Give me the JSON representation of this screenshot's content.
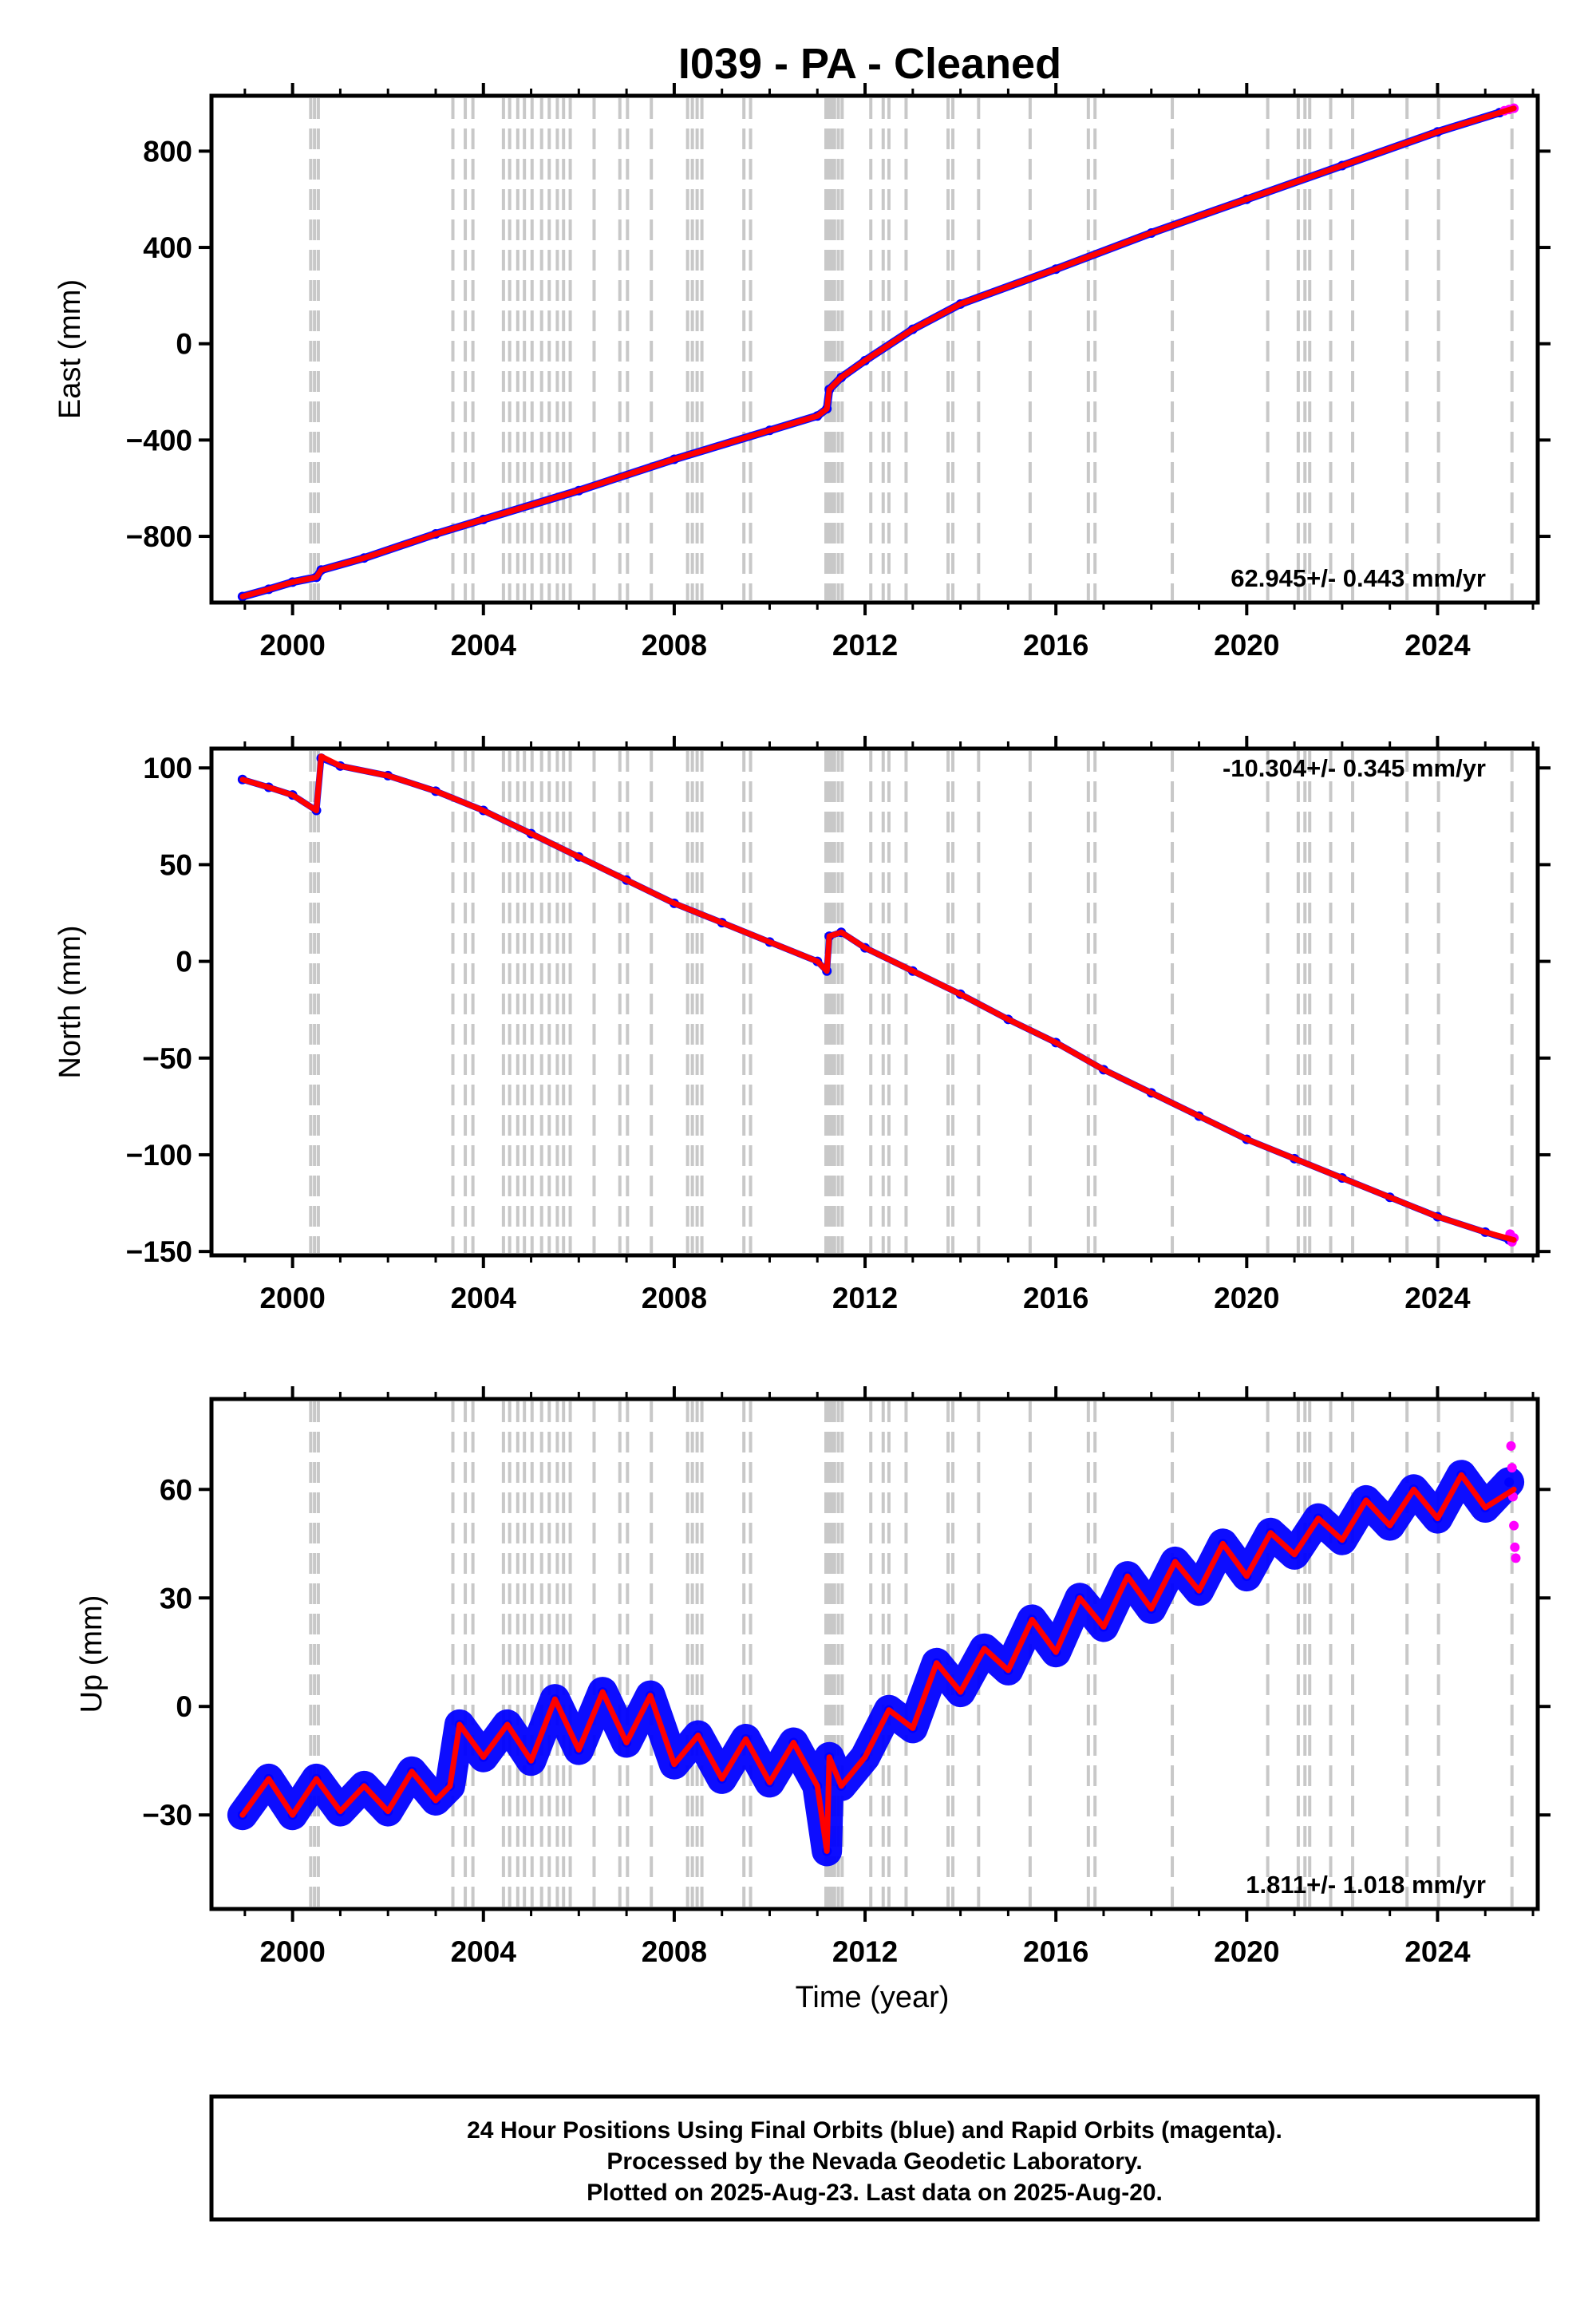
{
  "title": "I039  - PA - Cleaned",
  "colors": {
    "final_orbits": "#0000ff",
    "rapid_orbits": "#ff00ff",
    "model": "#ff0000",
    "event_lines": "#c8c8c8",
    "frame": "#000000"
  },
  "event_times": [
    2000.38,
    2000.46,
    2000.54,
    2003.36,
    2003.62,
    2003.78,
    2004.42,
    2004.55,
    2004.72,
    2004.86,
    2005.02,
    2005.22,
    2005.38,
    2005.55,
    2005.68,
    2005.82,
    2006.32,
    2006.86,
    2007.02,
    2007.52,
    2008.28,
    2008.38,
    2008.48,
    2008.58,
    2009.46,
    2009.6,
    2011.18,
    2011.24,
    2011.3,
    2011.36,
    2011.44,
    2011.52,
    2012.12,
    2012.38,
    2012.5,
    2012.86,
    2013.74,
    2013.84,
    2014.38,
    2015.46,
    2016.68,
    2016.82,
    2018.44,
    2020.44,
    2021.08,
    2021.22,
    2021.32,
    2021.76,
    2022.22,
    2023.36,
    2024.02,
    2025.56
  ],
  "chart_data": [
    {
      "type": "scatter",
      "component": "east",
      "ylabel": "East (mm)",
      "xlim": [
        1998.3,
        2026.1
      ],
      "ylim": [
        -1075,
        1030
      ],
      "x_ticks": [
        2000,
        2004,
        2008,
        2012,
        2016,
        2020,
        2024
      ],
      "y_ticks": [
        -800,
        -400,
        0,
        400,
        800
      ],
      "y_tick_labels": [
        "−800",
        "−400",
        "0",
        "400",
        "800"
      ],
      "rate_text": "62.945+/- 0.443 mm/yr",
      "rate_position": "bottom-right",
      "series": [
        {
          "name": "Final Orbits",
          "color": "#0000ff",
          "x": [
            1998.95,
            1999.5,
            2000.0,
            2000.5,
            2000.6,
            2001.5,
            2003.0,
            2004.0,
            2006.0,
            2008.0,
            2010.0,
            2011.0,
            2011.2,
            2011.25,
            2011.5,
            2012.0,
            2013.0,
            2014.0,
            2016.0,
            2018.0,
            2020.0,
            2022.0,
            2024.0,
            2025.3
          ],
          "y": [
            -1050,
            -1020,
            -990,
            -970,
            -940,
            -890,
            -790,
            -730,
            -610,
            -480,
            -360,
            -300,
            -270,
            -190,
            -140,
            -70,
            60,
            165,
            310,
            460,
            600,
            740,
            880,
            960
          ]
        },
        {
          "name": "Rapid Orbits",
          "color": "#ff00ff",
          "x": [
            2025.4,
            2025.5,
            2025.6
          ],
          "y": [
            968,
            973,
            978
          ]
        },
        {
          "name": "Model",
          "color": "#ff0000",
          "x": [
            1998.95,
            1999.5,
            2000.0,
            2000.5,
            2000.6,
            2001.5,
            2003.0,
            2004.0,
            2006.0,
            2008.0,
            2010.0,
            2011.0,
            2011.2,
            2011.25,
            2011.5,
            2012.0,
            2013.0,
            2014.0,
            2016.0,
            2018.0,
            2020.0,
            2022.0,
            2024.0,
            2025.6
          ],
          "y": [
            -1050,
            -1020,
            -990,
            -970,
            -940,
            -890,
            -790,
            -730,
            -610,
            -480,
            -360,
            -300,
            -270,
            -190,
            -140,
            -70,
            60,
            165,
            310,
            460,
            600,
            740,
            880,
            978
          ]
        }
      ]
    },
    {
      "type": "scatter",
      "component": "north",
      "ylabel": "North (mm)",
      "xlim": [
        1998.3,
        2026.1
      ],
      "ylim": [
        -152,
        110
      ],
      "x_ticks": [
        2000,
        2004,
        2008,
        2012,
        2016,
        2020,
        2024
      ],
      "y_ticks": [
        -150,
        -100,
        -50,
        0,
        50,
        100
      ],
      "y_tick_labels": [
        "−150",
        "−100",
        "−50",
        "0",
        "50",
        "100"
      ],
      "rate_text": "-10.304+/- 0.345 mm/yr",
      "rate_position": "top-right",
      "series": [
        {
          "name": "Final Orbits",
          "color": "#0000ff",
          "x": [
            1998.95,
            1999.5,
            2000.0,
            2000.5,
            2000.6,
            2001.0,
            2002.0,
            2003.0,
            2004.0,
            2005.0,
            2006.0,
            2007.0,
            2008.0,
            2009.0,
            2010.0,
            2011.0,
            2011.2,
            2011.25,
            2011.5,
            2012.0,
            2013.0,
            2014.0,
            2015.0,
            2016.0,
            2017.0,
            2018.0,
            2019.0,
            2020.0,
            2021.0,
            2022.0,
            2023.0,
            2024.0,
            2025.0,
            2025.5
          ],
          "y": [
            94,
            90,
            86,
            78,
            105,
            101,
            96,
            88,
            78,
            66,
            54,
            42,
            30,
            20,
            10,
            0,
            -5,
            13,
            15,
            7,
            -5,
            -17,
            -30,
            -42,
            -56,
            -68,
            -80,
            -92,
            -102,
            -112,
            -122,
            -132,
            -140,
            -144
          ]
        },
        {
          "name": "Rapid Orbits",
          "color": "#ff00ff",
          "x": [
            2025.52,
            2025.56,
            2025.6
          ],
          "y": [
            -141,
            -145,
            -143
          ]
        },
        {
          "name": "Model",
          "color": "#ff0000",
          "x": [
            1998.95,
            1999.5,
            2000.0,
            2000.5,
            2000.6,
            2001.0,
            2002.0,
            2003.0,
            2004.0,
            2005.0,
            2006.0,
            2007.0,
            2008.0,
            2009.0,
            2010.0,
            2011.0,
            2011.2,
            2011.25,
            2011.5,
            2012.0,
            2013.0,
            2014.0,
            2015.0,
            2016.0,
            2017.0,
            2018.0,
            2019.0,
            2020.0,
            2021.0,
            2022.0,
            2023.0,
            2024.0,
            2025.0,
            2025.6
          ],
          "y": [
            94,
            90,
            86,
            78,
            106,
            101,
            96,
            88,
            78,
            66,
            54,
            42,
            30,
            20,
            10,
            0,
            -5,
            13,
            15,
            7,
            -5,
            -17,
            -30,
            -42,
            -56,
            -68,
            -80,
            -92,
            -102,
            -112,
            -122,
            -132,
            -140,
            -144
          ]
        }
      ]
    },
    {
      "type": "scatter",
      "component": "up",
      "ylabel": "Up (mm)",
      "xlabel": "Time (year)",
      "xlim": [
        1998.3,
        2026.1
      ],
      "ylim": [
        -56,
        85
      ],
      "x_ticks": [
        2000,
        2004,
        2008,
        2012,
        2016,
        2020,
        2024
      ],
      "y_ticks": [
        -30,
        0,
        30,
        60
      ],
      "y_tick_labels": [
        "−30",
        "0",
        "30",
        "60"
      ],
      "rate_text": "1.811+/- 1.018 mm/yr",
      "rate_position": "bottom-right",
      "series": [
        {
          "name": "Final Orbits",
          "color": "#0000ff",
          "x": [
            1998.95,
            1999.5,
            2000.0,
            2000.5,
            2001.0,
            2001.5,
            2002.0,
            2002.5,
            2003.0,
            2003.3,
            2003.5,
            2004.0,
            2004.5,
            2005.0,
            2005.5,
            2006.0,
            2006.5,
            2007.0,
            2007.5,
            2008.0,
            2008.5,
            2009.0,
            2009.5,
            2010.0,
            2010.5,
            2011.0,
            2011.2,
            2011.25,
            2011.5,
            2012.0,
            2012.5,
            2013.0,
            2013.5,
            2014.0,
            2014.5,
            2015.0,
            2015.5,
            2016.0,
            2016.5,
            2017.0,
            2017.5,
            2018.0,
            2018.5,
            2019.0,
            2019.5,
            2020.0,
            2020.5,
            2021.0,
            2021.5,
            2022.0,
            2022.5,
            2023.0,
            2023.5,
            2024.0,
            2024.5,
            2025.0,
            2025.5
          ],
          "y": [
            -30,
            -20,
            -30,
            -20,
            -29,
            -22,
            -29,
            -18,
            -26,
            -22,
            -5,
            -14,
            -5,
            -15,
            2,
            -12,
            4,
            -10,
            3,
            -16,
            -8,
            -20,
            -9,
            -21,
            -10,
            -22,
            -40,
            -14,
            -22,
            -14,
            -1,
            -6,
            12,
            4,
            16,
            10,
            24,
            15,
            30,
            22,
            36,
            27,
            40,
            32,
            45,
            36,
            48,
            42,
            52,
            46,
            57,
            50,
            60,
            52,
            64,
            55,
            62
          ]
        },
        {
          "name": "Rapid Orbits",
          "color": "#ff00ff",
          "x": [
            2025.54,
            2025.56,
            2025.58,
            2025.6,
            2025.62,
            2025.64
          ],
          "y": [
            72,
            66,
            58,
            50,
            44,
            41
          ]
        },
        {
          "name": "Model",
          "color": "#ff0000",
          "x": [
            1998.95,
            1999.5,
            2000.0,
            2000.5,
            2001.0,
            2001.5,
            2002.0,
            2002.5,
            2003.0,
            2003.3,
            2003.5,
            2004.0,
            2004.5,
            2005.0,
            2005.5,
            2006.0,
            2006.5,
            2007.0,
            2007.5,
            2008.0,
            2008.5,
            2009.0,
            2009.5,
            2010.0,
            2010.5,
            2011.0,
            2011.2,
            2011.25,
            2011.5,
            2012.0,
            2012.5,
            2013.0,
            2013.5,
            2014.0,
            2014.5,
            2015.0,
            2015.5,
            2016.0,
            2016.5,
            2017.0,
            2017.5,
            2018.0,
            2018.5,
            2019.0,
            2019.5,
            2020.0,
            2020.5,
            2021.0,
            2021.5,
            2022.0,
            2022.5,
            2023.0,
            2023.5,
            2024.0,
            2024.5,
            2025.0,
            2025.6
          ],
          "y": [
            -30,
            -20,
            -30,
            -20,
            -29,
            -22,
            -29,
            -18,
            -26,
            -22,
            -5,
            -14,
            -5,
            -15,
            2,
            -12,
            4,
            -10,
            3,
            -16,
            -8,
            -20,
            -9,
            -21,
            -10,
            -22,
            -40,
            -14,
            -22,
            -14,
            -1,
            -6,
            12,
            4,
            16,
            10,
            24,
            15,
            30,
            22,
            36,
            27,
            40,
            32,
            45,
            36,
            48,
            42,
            52,
            46,
            57,
            50,
            60,
            52,
            64,
            55,
            60
          ]
        }
      ]
    }
  ],
  "footer": {
    "line1": "24 Hour Positions Using Final Orbits (blue) and Rapid Orbits (magenta).",
    "line2": "Processed by the Nevada Geodetic Laboratory.",
    "line3": "Plotted on 2025-Aug-23. Last data on 2025-Aug-20."
  }
}
